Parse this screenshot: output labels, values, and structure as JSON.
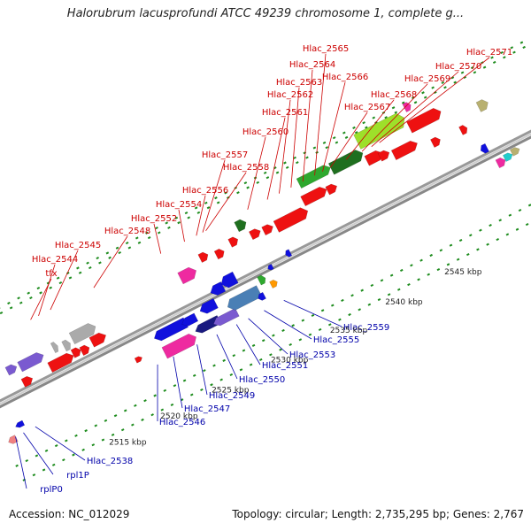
{
  "title": "Halorubrum lacusprofundi ATCC 49239 chromosome 1, complete g...",
  "footer": {
    "accession": "Accession: NC_012029",
    "stats": "Topology: circular; Length: 2,735,295 bp; Genes: 2,767"
  },
  "colors": {
    "backbone": "#8c8c8c",
    "tick": "#1e8c1e",
    "forward_label": "#cc0000",
    "reverse_label": "#0000aa",
    "gene_red": "#ee1111",
    "gene_blue": "#1010dd",
    "gene_pink": "#ee2aa0",
    "gene_green": "#2ea82e",
    "gene_lightgreen": "#9ee02a",
    "gene_darkgreen": "#1f6f1f",
    "gene_grey": "#aaaaaa",
    "gene_steel": "#4a7fb5",
    "gene_navy": "#1a1a80",
    "gene_purple": "#7a5ad0",
    "gene_olive": "#b8b070",
    "gene_cyan": "#22cccc",
    "gene_orange": "#ff9900",
    "gene_salmon": "#f08080"
  },
  "scale_labels": [
    {
      "text": "2515 kbp",
      "u": 95
    },
    {
      "text": "2520 kbp",
      "u": 160
    },
    {
      "text": "2525 kbp",
      "u": 225
    },
    {
      "text": "2530 kbp",
      "u": 300
    },
    {
      "text": "2535 kbp",
      "u": 375
    },
    {
      "text": "2540 kbp",
      "u": 445
    },
    {
      "text": "2545 kbp",
      "u": 520
    }
  ],
  "forward_labels": [
    {
      "text": "tfx",
      "u": 80
    },
    {
      "text": "Hlac_2544",
      "u": 90
    },
    {
      "text": "Hlac_2545",
      "u": 105
    },
    {
      "text": "Hlac_2548",
      "u": 160
    },
    {
      "text": "Hlac_2552",
      "u": 245
    },
    {
      "text": "Hlac_2554",
      "u": 275
    },
    {
      "text": "Hlac_2556",
      "u": 290
    },
    {
      "text": "Hlac_2558",
      "u": 302
    },
    {
      "text": "Hlac_2557",
      "u": 298
    },
    {
      "text": "Hlac_2560",
      "u": 355
    },
    {
      "text": "Hlac_2561",
      "u": 380
    },
    {
      "text": "Hlac_2562",
      "u": 395
    },
    {
      "text": "Hlac_2563",
      "u": 410
    },
    {
      "text": "Hlac_2564",
      "u": 425
    },
    {
      "text": "Hlac_2565",
      "u": 440
    },
    {
      "text": "Hlac_2566",
      "u": 450
    },
    {
      "text": "Hlac_2567",
      "u": 460
    },
    {
      "text": "Hlac_2568",
      "u": 480
    },
    {
      "text": "Hlac_2569",
      "u": 500
    },
    {
      "text": "Hlac_2570",
      "u": 512
    },
    {
      "text": "Hlac_2571",
      "u": 522
    }
  ],
  "reverse_labels": [
    {
      "text": "rplP0",
      "u": 5
    },
    {
      "text": "rpl1P",
      "u": 15
    },
    {
      "text": "Hlac_2538",
      "u": 30
    },
    {
      "text": "Hlac_2546",
      "u": 185
    },
    {
      "text": "Hlac_2547",
      "u": 205
    },
    {
      "text": "Hlac_2549",
      "u": 235
    },
    {
      "text": "Hlac_2550",
      "u": 260
    },
    {
      "text": "Hlac_2551",
      "u": 285
    },
    {
      "text": "Hlac_2553",
      "u": 300
    },
    {
      "text": "Hlac_2555",
      "u": 320
    },
    {
      "text": "Hlac_2559",
      "u": 345
    }
  ]
}
